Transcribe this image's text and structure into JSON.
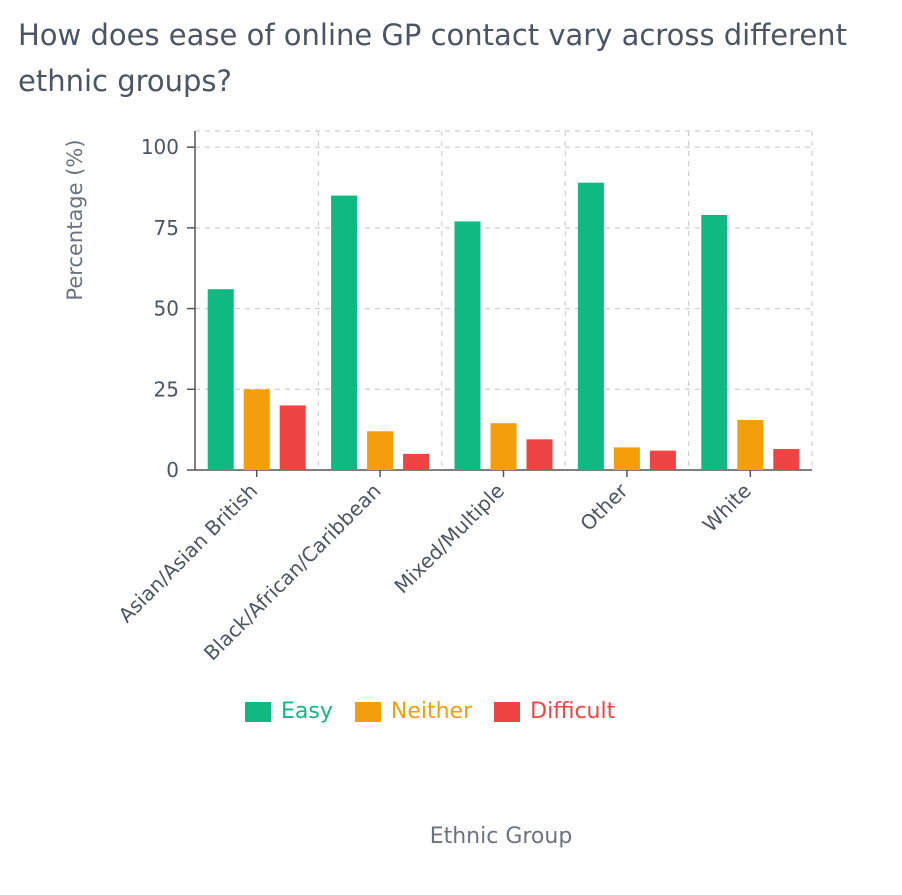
{
  "title": "How does ease of online GP contact vary across different ethnic groups?",
  "chart_data": {
    "type": "bar",
    "categories": [
      "Asian/Asian British",
      "Black/African/Caribbean",
      "Mixed/Multiple",
      "Other",
      "White"
    ],
    "series": [
      {
        "name": "Easy",
        "color": "#10b981",
        "values": [
          56,
          85,
          77,
          89,
          79
        ]
      },
      {
        "name": "Neither",
        "color": "#f59e0b",
        "values": [
          25,
          12,
          14.5,
          7,
          15.5
        ]
      },
      {
        "name": "Difficult",
        "color": "#ef4444",
        "values": [
          20,
          5,
          9.5,
          6,
          6.5
        ]
      }
    ],
    "xlabel": "Ethnic Group",
    "ylabel": "Percentage (%)",
    "ylim": [
      0,
      105
    ],
    "yticks": [
      0,
      25,
      50,
      75,
      100
    ],
    "grid": true,
    "legend_position": "bottom"
  }
}
